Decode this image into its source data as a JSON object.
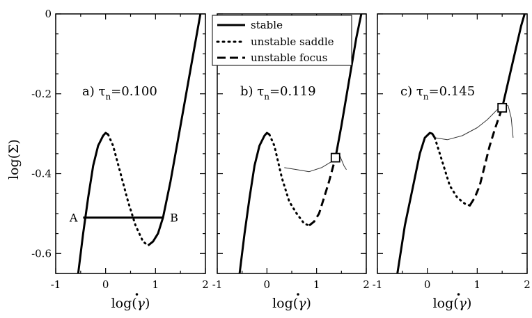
{
  "figure": {
    "ylabel": "log(Σ)",
    "xlabel_text": "log(",
    "xlabel_gamma": "γ",
    "xlabel_close": ")",
    "xticks": [
      "-1",
      "0",
      "1",
      "2"
    ],
    "yticks": [
      "0",
      "-0.2",
      "-0.4",
      "-0.6"
    ]
  },
  "legend": {
    "entries": [
      {
        "label": "stable",
        "style": "solid"
      },
      {
        "label": "unstable saddle",
        "style": "dotted"
      },
      {
        "label": "unstable focus",
        "style": "dashed"
      }
    ]
  },
  "chart_data": [
    {
      "type": "line",
      "panel_label": "a)",
      "tau_symbol": "τ",
      "tau_sub": "n",
      "tau_value": "=0.100",
      "xlim": [
        -1,
        2
      ],
      "ylim": [
        -0.65,
        0
      ],
      "series": [
        {
          "style": "solid",
          "x": [
            -0.55,
            -0.45,
            -0.35,
            -0.25,
            -0.15,
            -0.05,
            0.0,
            0.05
          ],
          "y": [
            -0.65,
            -0.55,
            -0.46,
            -0.38,
            -0.33,
            -0.305,
            -0.298,
            -0.302
          ]
        },
        {
          "style": "dotted",
          "x": [
            0.05,
            0.15,
            0.3,
            0.45,
            0.6,
            0.75,
            0.85
          ],
          "y": [
            -0.302,
            -0.33,
            -0.4,
            -0.47,
            -0.53,
            -0.57,
            -0.58
          ]
        },
        {
          "style": "solid",
          "x": [
            0.85,
            0.95,
            1.05,
            1.15,
            1.3,
            1.5,
            1.7,
            1.9
          ],
          "y": [
            -0.58,
            -0.57,
            -0.55,
            -0.51,
            -0.42,
            -0.28,
            -0.14,
            0.0
          ]
        },
        {
          "style": "solid",
          "x": [
            -0.45,
            1.15
          ],
          "y": [
            -0.51,
            -0.51
          ]
        }
      ],
      "annotations": [
        {
          "text": "A",
          "x": -0.45,
          "y": -0.51
        },
        {
          "text": "B",
          "x": 1.15,
          "y": -0.51
        }
      ]
    },
    {
      "type": "line",
      "panel_label": "b)",
      "tau_symbol": "τ",
      "tau_sub": "n",
      "tau_value": "=0.119",
      "xlim": [
        -1,
        2
      ],
      "ylim": [
        -0.65,
        0
      ],
      "series": [
        {
          "style": "solid",
          "x": [
            -0.55,
            -0.45,
            -0.35,
            -0.25,
            -0.15,
            -0.05,
            0.0,
            0.05
          ],
          "y": [
            -0.65,
            -0.55,
            -0.46,
            -0.38,
            -0.33,
            -0.305,
            -0.298,
            -0.302
          ]
        },
        {
          "style": "dotted",
          "x": [
            0.05,
            0.15,
            0.3,
            0.45,
            0.6,
            0.75,
            0.85
          ],
          "y": [
            -0.302,
            -0.33,
            -0.41,
            -0.47,
            -0.5,
            -0.525,
            -0.53
          ]
        },
        {
          "style": "dashed",
          "x": [
            0.85,
            0.95,
            1.05,
            1.15,
            1.25,
            1.38
          ],
          "y": [
            -0.53,
            -0.52,
            -0.5,
            -0.46,
            -0.42,
            -0.36
          ]
        },
        {
          "style": "solid",
          "x": [
            1.38,
            1.5,
            1.65,
            1.8,
            1.9
          ],
          "y": [
            -0.36,
            -0.28,
            -0.17,
            -0.06,
            0.0
          ]
        },
        {
          "style": "thin",
          "x": [
            0.35,
            0.6,
            0.85,
            1.1,
            1.3,
            1.45,
            1.55,
            1.6
          ],
          "y": [
            -0.385,
            -0.39,
            -0.395,
            -0.385,
            -0.37,
            -0.35,
            -0.38,
            -0.39
          ]
        }
      ],
      "marker": {
        "x": 1.38,
        "y": -0.36
      }
    },
    {
      "type": "line",
      "panel_label": "c)",
      "tau_symbol": "τ",
      "tau_sub": "n",
      "tau_value": "=0.145",
      "xlim": [
        -1,
        2
      ],
      "ylim": [
        -0.65,
        0
      ],
      "series": [
        {
          "style": "solid",
          "x": [
            -0.6,
            -0.45,
            -0.3,
            -0.15,
            -0.05,
            0.05,
            0.1,
            0.15
          ],
          "y": [
            -0.65,
            -0.53,
            -0.44,
            -0.35,
            -0.31,
            -0.298,
            -0.3,
            -0.31
          ]
        },
        {
          "style": "dotted",
          "x": [
            0.15,
            0.3,
            0.45,
            0.6,
            0.75,
            0.85
          ],
          "y": [
            -0.31,
            -0.37,
            -0.43,
            -0.46,
            -0.475,
            -0.48
          ]
        },
        {
          "style": "dashed",
          "x": [
            0.85,
            0.95,
            1.05,
            1.15,
            1.25,
            1.35,
            1.5
          ],
          "y": [
            -0.48,
            -0.46,
            -0.43,
            -0.38,
            -0.33,
            -0.29,
            -0.235
          ]
        },
        {
          "style": "solid",
          "x": [
            1.5,
            1.62,
            1.75,
            1.88,
            1.95
          ],
          "y": [
            -0.235,
            -0.17,
            -0.1,
            -0.03,
            0.0
          ]
        },
        {
          "style": "thin",
          "x": [
            0.15,
            0.4,
            0.7,
            1.0,
            1.2,
            1.4,
            1.55,
            1.62,
            1.68,
            1.72
          ],
          "y": [
            -0.31,
            -0.315,
            -0.305,
            -0.285,
            -0.265,
            -0.24,
            -0.225,
            -0.23,
            -0.26,
            -0.31
          ]
        }
      ],
      "marker": {
        "x": 1.5,
        "y": -0.235
      }
    }
  ]
}
